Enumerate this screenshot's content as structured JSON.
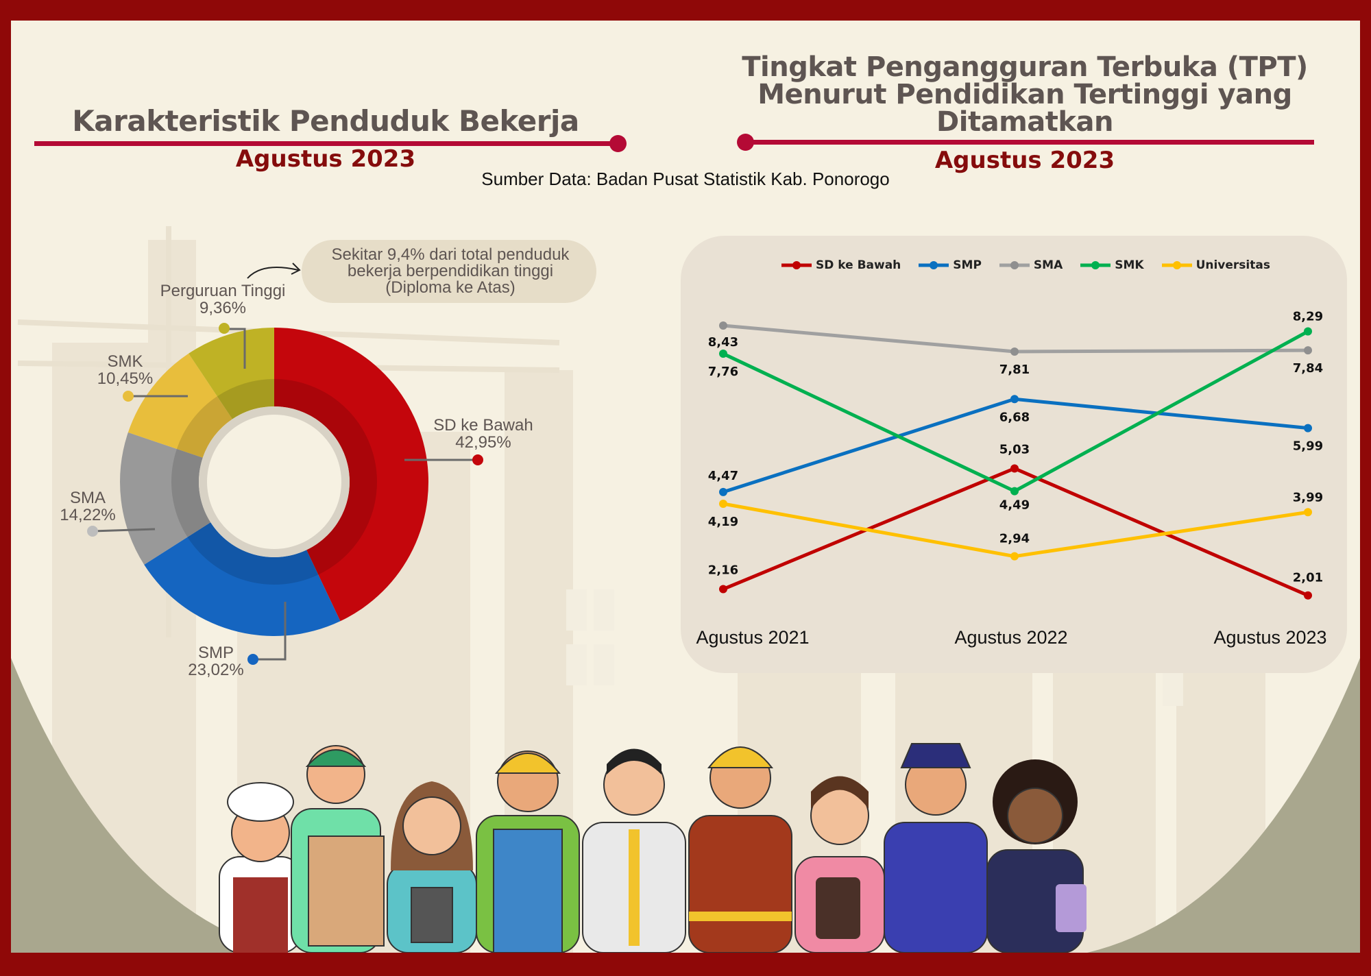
{
  "left_panel": {
    "title": "Karakteristik Penduduk Bekerja",
    "subtitle": "Agustus 2023",
    "note": "Sekitar 9,4% dari total penduduk bekerja berpendidikan tinggi (Diploma ke Atas)"
  },
  "right_panel": {
    "title_line1": "Tingkat Pengangguran Terbuka (TPT)",
    "title_line2": "Menurut Pendidikan Tertinggi yang",
    "title_line3": "Ditamatkan",
    "subtitle": "Agustus 2023"
  },
  "source": "Sumber Data: Badan Pusat Statistik Kab. Ponorogo",
  "colors": {
    "frame": "#8f0808",
    "panel_bg": "#f6f1e2",
    "accent_line": "#b40a35",
    "sd": "#c4060c",
    "smp": "#1565c0",
    "sma": "#999999",
    "smk": "#e8be3c",
    "pt": "#bfb225",
    "line_sd": "#c00000",
    "line_smp": "#0a70c0",
    "line_sma": "#a0a0a0",
    "line_smk": "#00b050",
    "line_univ": "#ffc000"
  },
  "icons": [
    "curved-arrow-icon",
    "workers-illustration"
  ],
  "chart_data": [
    {
      "type": "pie",
      "title": "Karakteristik Penduduk Bekerja",
      "subtitle": "Agustus 2023",
      "donut": true,
      "slices": [
        {
          "label": "SD ke Bawah",
          "value": 42.95,
          "display": "42,95%",
          "color": "#c4060c"
        },
        {
          "label": "SMP",
          "value": 23.02,
          "display": "23,02%",
          "color": "#1565c0"
        },
        {
          "label": "SMA",
          "value": 14.22,
          "display": "14,22%",
          "color": "#999999"
        },
        {
          "label": "SMK",
          "value": 10.45,
          "display": "10,45%",
          "color": "#e8be3c"
        },
        {
          "label": "Perguruan Tinggi",
          "value": 9.36,
          "display": "9,36%",
          "color": "#bfb225"
        }
      ]
    },
    {
      "type": "line",
      "title": "Tingkat Pengangguran Terbuka (TPT) Menurut Pendidikan Tertinggi yang Ditamatkan",
      "subtitle": "Agustus 2023",
      "categories": [
        "Agustus 2021",
        "Agustus 2022",
        "Agustus 2023"
      ],
      "legend_position": "top",
      "grid": false,
      "ylim": [
        1.5,
        9
      ],
      "series": [
        {
          "name": "SD ke Bawah",
          "color": "#c00000",
          "values": [
            2.16,
            5.03,
            2.01
          ],
          "labels": [
            "2,16",
            "5,03",
            "2,01"
          ]
        },
        {
          "name": "SMP",
          "color": "#0a70c0",
          "values": [
            4.47,
            6.68,
            5.99
          ],
          "labels": [
            "4,47",
            "6,68",
            "5,99"
          ]
        },
        {
          "name": "SMA",
          "color": "#a0a0a0",
          "values": [
            8.43,
            7.81,
            7.84
          ],
          "labels": [
            "8,43",
            "7,81",
            "7,84"
          ]
        },
        {
          "name": "SMK",
          "color": "#00b050",
          "values": [
            7.76,
            4.49,
            8.29
          ],
          "labels": [
            "7,76",
            "4,49",
            "8,29"
          ]
        },
        {
          "name": "Universitas",
          "color": "#ffc000",
          "values": [
            4.19,
            2.94,
            3.99
          ],
          "labels": [
            "4,19",
            "2,94",
            "3,99"
          ]
        }
      ]
    }
  ]
}
